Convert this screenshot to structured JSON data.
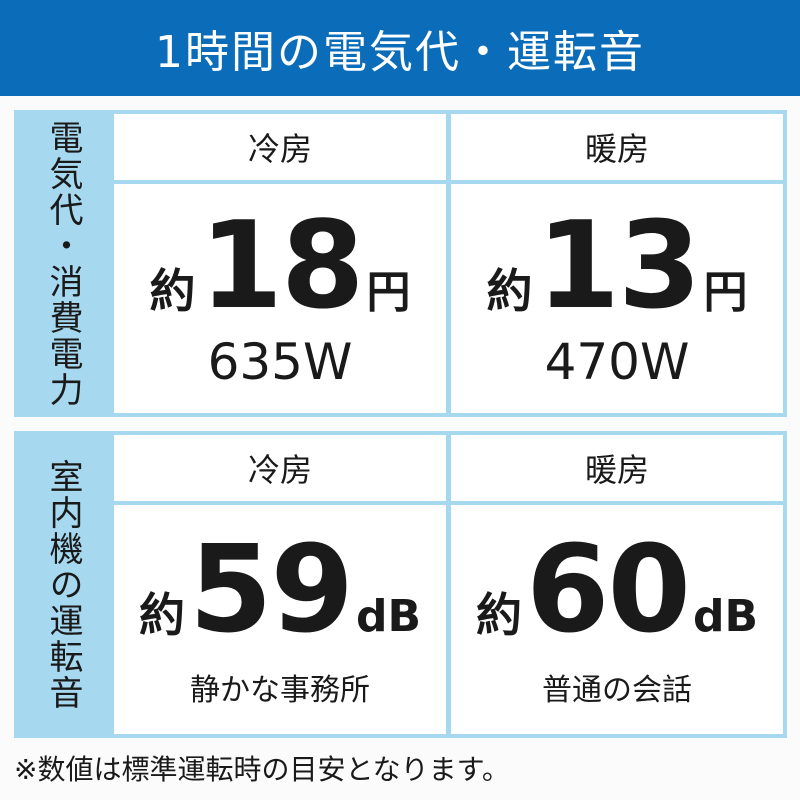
{
  "title": "1時間の電気代・運転音",
  "sections": [
    {
      "label": "電気代・消費電力",
      "cols": [
        {
          "header": "冷房",
          "prefix": "約",
          "value": "18",
          "unit": "円",
          "sub": "635W"
        },
        {
          "header": "暖房",
          "prefix": "約",
          "value": "13",
          "unit": "円",
          "sub": "470W"
        }
      ]
    },
    {
      "label": "室内機の運転音",
      "cols": [
        {
          "header": "冷房",
          "prefix": "約",
          "value": "59",
          "unit": "dB",
          "sub": "静かな事務所"
        },
        {
          "header": "暖房",
          "prefix": "約",
          "value": "60",
          "unit": "dB",
          "sub": "普通の会話"
        }
      ]
    }
  ],
  "note": "※数値は標準運転時の目安となります。",
  "colors": {
    "header": "#0b6cb9",
    "accent": "#a6d8f0"
  }
}
